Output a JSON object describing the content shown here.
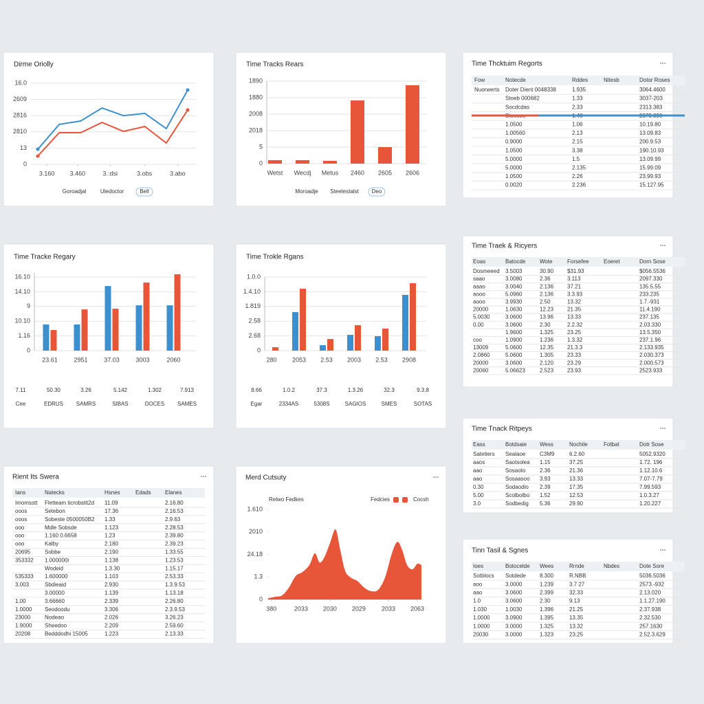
{
  "panels": [
    {
      "type": "line",
      "title": "Dirme Oriolly",
      "x": [
        0,
        1,
        2,
        3,
        4,
        5,
        6,
        7
      ],
      "xlim": [
        0,
        7
      ],
      "xticks": [
        {
          "value": 0.42,
          "label": "3.160"
        },
        {
          "value": 1.86,
          "label": "3.460"
        },
        {
          "value": 3.38,
          "label": "3.:dsi"
        },
        {
          "value": 4.98,
          "label": "3.obs"
        },
        {
          "value": 6.53,
          "label": "3.abo"
        }
      ],
      "ylim": [
        0,
        5
      ],
      "yticks": [
        0,
        {
          "value": 1,
          "label": "13"
        },
        {
          "value": 2,
          "label": "2810"
        },
        {
          "value": 3,
          "label": "2816"
        },
        {
          "value": 4,
          "label": "2609"
        },
        {
          "value": 5,
          "label": "16.0"
        }
      ],
      "grid": true,
      "series": [
        {
          "color": "#3d8fce",
          "values": [
            0.93,
            2.46,
            2.67,
            3.47,
            3.0,
            3.14,
            2.2,
            4.58
          ]
        },
        {
          "color": "#e8563a",
          "values": [
            0.51,
            1.95,
            1.95,
            2.58,
            2.03,
            2.33,
            1.31,
            3.35
          ]
        }
      ],
      "footer": [
        "Goroadjal",
        "Uledoctor",
        "Bell"
      ]
    },
    {
      "type": "bar",
      "title": "Time Tracks Rears",
      "categories": [
        "Wetst",
        "Wecdj",
        "Metus",
        "2460",
        "2605",
        "2606"
      ],
      "values": [
        0.21,
        0.21,
        0.17,
        3.83,
        1.0,
        4.75
      ],
      "color": "#e8563a",
      "ylim": [
        0,
        5
      ],
      "yticks": [
        0,
        {
          "value": 1,
          "label": "5"
        },
        {
          "value": 2,
          "label": "2018"
        },
        {
          "value": 3,
          "label": "2008"
        },
        {
          "value": 4,
          "label": "1880"
        },
        {
          "value": 5,
          "label": "1890"
        }
      ],
      "grid": true,
      "footer": [
        "Moroadje",
        "Steetestalst",
        "Deo"
      ]
    },
    {
      "type": "table",
      "title": "Time Thcktuim Regorts",
      "columns": [
        {
          "key": "a",
          "title": "Fow"
        },
        {
          "key": "b",
          "title": "Notecde"
        },
        {
          "key": "c",
          "title": "Rddes"
        },
        {
          "key": "d",
          "title": "Nitesb"
        },
        {
          "key": "e",
          "title": "Dotor Roses"
        }
      ],
      "highlight_color": "#e8563a",
      "rows": [
        {
          "a": "Nuorwerts",
          "b": "Doter Dient 0048338",
          "c": "1.935",
          "e": "3064.4600",
          "red": [
            "e"
          ]
        },
        {
          "b": "Stoeb 000682",
          "c": "1.33",
          "e": "3037-203"
        },
        {
          "b": "Socdcdas",
          "c": "2.33",
          "e": "2313.383"
        },
        {
          "b": "Stoocoo",
          "c": "1.48",
          "e": "2073.390"
        },
        {
          "b": "1.0500",
          "c": "1.06",
          "e": "10.19.80"
        },
        {
          "b": "1.00560",
          "c": "2.13",
          "e": "13.09.83"
        },
        {
          "b": "0.9000",
          "c": "2.15",
          "e": "200.9.53"
        },
        {
          "b": "1.0500",
          "c": "3.38",
          "e": "190.10.93"
        },
        {
          "b": "5.0000",
          "c": "1.5",
          "e": "13.09.99"
        },
        {
          "b": "5.0000",
          "c": "2.135",
          "e": "15.99.09"
        },
        {
          "b": "1.0500",
          "c": "2.26",
          "e": "23.99.93"
        },
        {
          "b": "0.0020",
          "c": "2.236",
          "e": "15.127.95"
        }
      ]
    },
    {
      "type": "grouped",
      "title": "Time Tracke Regary",
      "categories": [
        "23.61",
        "2951",
        "37.03",
        "3003",
        "2060"
      ],
      "ylim": [
        0,
        5.3
      ],
      "yticks": [
        0,
        {
          "value": 1,
          "label": "1.16"
        },
        {
          "value": 2,
          "label": "10.10"
        },
        {
          "value": 3,
          "label": "9"
        },
        {
          "value": 4,
          "label": "14.10"
        },
        {
          "value": 5,
          "label": "16.10"
        }
      ],
      "grid": true,
      "series": [
        {
          "color": "#3d8fce",
          "values": [
            1.78,
            1.78,
            4.39,
            3.08,
            3.08
          ]
        },
        {
          "color": "#e8563a",
          "values": [
            1.4,
            2.8,
            2.85,
            4.63,
            5.19
          ]
        }
      ],
      "stats": [
        {
          "value": "7.11",
          "label": "Cee",
          "color": "#e8563a"
        },
        {
          "value": "50.30",
          "label": "EDRUS",
          "color": "#e8563a"
        },
        {
          "value": "3.26",
          "label": "SAMRS",
          "color": "#e8563a"
        },
        {
          "value": "5.142",
          "label": "SIBAS",
          "color": "#e8563a"
        },
        {
          "value": "1.302",
          "label": "DOCES",
          "color": "#3d8fce"
        },
        {
          "value": "7.913",
          "label": "SAMES",
          "color": "#3d8fce"
        }
      ]
    },
    {
      "type": "grouped",
      "title": "Time Trokle Rgans",
      "categories": [
        "280",
        "2053",
        "2.53",
        "2003",
        "2.53",
        "2908"
      ],
      "ylim": [
        0,
        5
      ],
      "yticks": [
        0,
        {
          "value": 1,
          "label": "2.68"
        },
        {
          "value": 2,
          "label": "2.58"
        },
        {
          "value": 3,
          "label": "1.819"
        },
        {
          "value": 4,
          "label": "1.4.10"
        },
        {
          "value": 5,
          "label": "1.0.0"
        }
      ],
      "grid": true,
      "series": [
        {
          "color": "#3d8fce",
          "values": [
            null,
            2.62,
            0.37,
            1.07,
            0.98,
            3.79
          ]
        },
        {
          "color": "#e8563a",
          "values": [
            0.23,
            4.21,
            0.79,
            1.73,
            1.5,
            4.58
          ]
        }
      ],
      "stats": [
        {
          "value": "8.66",
          "label": "Egar",
          "color": "#e8563a"
        },
        {
          "value": "1.0.2",
          "label": "2334AS",
          "color": "#e8563a"
        },
        {
          "value": "37.3",
          "label": "5308S",
          "color": "#3d8fce"
        },
        {
          "value": "1.3.26",
          "label": "SAGIOS",
          "color": "#3d8fce"
        },
        {
          "value": "32.3",
          "label": "SMES",
          "color": "#3d8fce"
        },
        {
          "value": "9.3.8",
          "label": "SOTAS",
          "color": "#3d8fce"
        }
      ]
    },
    {
      "type": "table",
      "title": "Time Traek & Ricyers",
      "columns": [
        {
          "key": "a",
          "title": "Eoas"
        },
        {
          "key": "b",
          "title": "Batocde"
        },
        {
          "key": "c",
          "title": "Wote"
        },
        {
          "key": "d",
          "title": "Forsefee"
        },
        {
          "key": "e",
          "title": "Eoeret"
        },
        {
          "key": "f",
          "title": "Dorn Sose"
        }
      ],
      "highlight_color": "#e8563a",
      "rows": [
        {
          "a": "Dosmeeed",
          "b": "3.5003",
          "c": "30.90",
          "d": "$31.93",
          "f": "$056.5536",
          "red": [
            "d",
            "f"
          ]
        },
        {
          "a": "saao",
          "b": "3.0080",
          "c": "2.36",
          "d": "3.113",
          "f": "2097.330"
        },
        {
          "a": "aaao",
          "b": "3.0040",
          "c": "2.136",
          "d": "37.21",
          "f": "135.5.55",
          "red": [
            "d"
          ]
        },
        {
          "a": "aooo",
          "b": "5.0960",
          "c": "2.136",
          "d": "3.3.93",
          "f": "233.235"
        },
        {
          "a": "aooo",
          "b": "3.9930",
          "c": "2.50",
          "d": "13.32",
          "f": "1.7.-931"
        },
        {
          "a": "20000",
          "b": "1.0630",
          "c": "12.23",
          "d": "21.35",
          "f": "11.4.190"
        },
        {
          "a": "5.0030",
          "b": "3.0600",
          "c": "13.96",
          "d": "13.33",
          "f": "237.135"
        },
        {
          "a": "0.00",
          "b": "3.0600",
          "c": "2.30",
          "d": "2.2.32",
          "f": "2.03.330"
        },
        {
          "b": "1.9600",
          "c": "1.325",
          "d": "23.25",
          "f": "13.5.350"
        },
        {
          "a": "coo",
          "b": "1.0900",
          "c": "1.236",
          "d": "1.3.32",
          "f": "237.1.96"
        },
        {
          "a": "13009",
          "b": "5.0600",
          "c": "12.35",
          "d": "21.3.3",
          "f": "2.133.935"
        },
        {
          "a": "2.0860",
          "b": "5.0600",
          "c": "1.305",
          "d": "23.33",
          "f": "2.030.373",
          "red": [
            "d"
          ]
        },
        {
          "a": "20000",
          "b": "3.0600",
          "c": "2.120",
          "d": "23.29",
          "f": "2.000.573",
          "red": [
            "d"
          ]
        },
        {
          "a": "20060",
          "b": "5.06623",
          "c": "2.523",
          "d": "23.93",
          "f": "2523.933",
          "red": [
            "d"
          ]
        }
      ]
    },
    {
      "type": "table",
      "title": "Rient Its Swera",
      "columns": [
        {
          "key": "a",
          "title": "Ians"
        },
        {
          "key": "b",
          "title": "Natecks"
        },
        {
          "key": "c",
          "title": "Hsnes"
        },
        {
          "key": "d",
          "title": "Edads"
        },
        {
          "key": "e",
          "title": "Elanes"
        }
      ],
      "highlight_color": "#e8563a",
      "rows": [
        {
          "a": "Imomsstt",
          "b": "Fletteam ticrobstit2d",
          "c": "11.09",
          "e": "2.16.80"
        },
        {
          "a": "ooos",
          "b": "Setebon",
          "c": "17.36",
          "e": "2.16.53"
        },
        {
          "a": "ooos",
          "b": "Sobeste 0500050B2",
          "c": "1.33",
          "e": "2.9.63"
        },
        {
          "a": "ooo",
          "b": "Mdle Sobsde",
          "c": "1.123",
          "e": "2.28.53"
        },
        {
          "a": "ooo",
          "b": "1.160 0.6658",
          "c": "1.23",
          "e": "2.39.80"
        },
        {
          "a": "ooo",
          "b": "Kalby",
          "c": "2.180",
          "e": "2.39.23"
        },
        {
          "a": "20695",
          "b": "Sobbe",
          "c": "2.190",
          "e": "1.33.55"
        },
        {
          "a": "353332",
          "b": "1.000000i",
          "c": "1.138",
          "e": "1.23.53"
        },
        {
          "b": "Wodeid",
          "c": "1.3.30",
          "e": "1.15.17"
        },
        {
          "a": "535333",
          "b": "1.600000",
          "c": "1.103",
          "e": "2.53.33"
        },
        {
          "a": "3.003",
          "b": "Sbdieaid",
          "c": "2.930",
          "e": "1.3.9.53"
        },
        {
          "b": "3.00000",
          "c": "1.139",
          "e": "1.13.18"
        },
        {
          "a": "1.00",
          "b": "3.66660",
          "c": "2.339",
          "e": "2.26.80"
        },
        {
          "a": "1.0000",
          "b": "Seodoodu",
          "c": "3.306",
          "e": "2.3.9.53"
        },
        {
          "a": "23000",
          "b": "Nodeao",
          "c": "2.026",
          "e": "3.26.23"
        },
        {
          "a": "1.9000",
          "b": "Sheedoo",
          "c": "2.209",
          "e": "2.59.60"
        },
        {
          "a": "20208",
          "b": "Bedddodhi 15005",
          "c": "1.223",
          "e": "2.13.33"
        }
      ]
    },
    {
      "type": "area",
      "title": "Merd Cutsuty",
      "subtitle": "Relwo Fedkes",
      "legend": [
        {
          "name": "Fedcies",
          "color": "#e8563a"
        },
        {
          "name": "Cocsh",
          "color": "#e8563a"
        }
      ],
      "color": "#e8563a",
      "x": [
        0.9,
        5.3,
        9.7,
        14.1,
        18.5,
        22.9,
        27.3,
        30.8,
        33.9,
        37.0,
        40.5,
        44.1,
        47.1,
        50.2,
        53.7,
        58.1,
        62.6,
        67.0,
        71.4,
        75.8,
        80.2,
        83.7,
        86.8,
        89.9,
        93.4,
        96.5,
        99.1
      ],
      "values": [
        0.06,
        0.12,
        0.18,
        0.52,
        1.04,
        1.22,
        1.53,
        2.05,
        1.65,
        1.89,
        2.5,
        3.11,
        2.2,
        1.28,
        0.98,
        0.82,
        0.52,
        0.37,
        0.43,
        0.98,
        2.05,
        2.56,
        2.2,
        1.53,
        1.34,
        1.59,
        1.53
      ],
      "xlim": [
        0,
        100
      ],
      "xticks": [
        {
          "value": 3,
          "label": "380"
        },
        {
          "value": 22,
          "label": "2033"
        },
        {
          "value": 40.5,
          "label": "2030"
        },
        {
          "value": 59,
          "label": "2029"
        },
        {
          "value": 78,
          "label": "2033"
        },
        {
          "value": 96.5,
          "label": "2063"
        }
      ],
      "ylim": [
        0,
        4
      ],
      "yticks": [
        0,
        {
          "value": 1,
          "label": "1.3"
        },
        {
          "value": 2,
          "label": "24.18"
        },
        {
          "value": 3,
          "label": "2010"
        },
        {
          "value": 4,
          "label": "1.610"
        }
      ],
      "grid": false
    },
    {
      "type": "table",
      "title": "Time Tnack Ritpeys",
      "columns": [
        {
          "key": "a",
          "title": "Eass"
        },
        {
          "key": "b",
          "title": "Botdsaie"
        },
        {
          "key": "c",
          "title": "Wess"
        },
        {
          "key": "d",
          "title": "Nochile"
        },
        {
          "key": "e",
          "title": "Fotbat"
        },
        {
          "key": "f",
          "title": "Dotr Sose"
        }
      ],
      "highlight_color": "#e8563a",
      "rows": [
        {
          "a": "Satetiers",
          "b": "Sealaoe",
          "c": "C3M9",
          "d": "6.2.60",
          "f": "5052.9320",
          "red": [
            "d",
            "f"
          ]
        },
        {
          "a": "aaos",
          "b": "Saotsolea",
          "c": "1.15",
          "d": "37.25",
          "f": "1.72. 196"
        },
        {
          "a": "aao",
          "b": "Sosaoto",
          "c": "2.36",
          "d": "21.36",
          "f": "1.12.10.6"
        },
        {
          "a": "aao",
          "b": "Sosaasoo",
          "c": "3.93",
          "d": "13.33",
          "f": "7.07-7.79"
        },
        {
          "a": "0.30",
          "b": "Sodaodio",
          "c": "2.39",
          "d": "17.35",
          "f": "7.99.593"
        },
        {
          "a": "5.00",
          "b": "Scolbolbo",
          "c": "1.52",
          "d": "12.53",
          "f": "1.0.3.27"
        },
        {
          "a": "3.0",
          "b": "Sodbedig",
          "c": "5.36",
          "d": "29.90",
          "f": "1.20.227"
        }
      ]
    },
    {
      "type": "table",
      "title": "Tinn Tasil & Sgnes",
      "columns": [
        {
          "key": "a",
          "title": "Ioes"
        },
        {
          "key": "b",
          "title": "Botocelde"
        },
        {
          "key": "c",
          "title": "Wees"
        },
        {
          "key": "d",
          "title": "Rrnde"
        },
        {
          "key": "e",
          "title": "Nbdes"
        },
        {
          "key": "f",
          "title": "Dote Sore"
        }
      ],
      "highlight_color": "#e8563a",
      "rows": [
        {
          "a": "Sotblocs",
          "b": "Sotdede",
          "c": "8.300",
          "d": "R.NBB",
          "f": "5036.5036",
          "red": [
            "d",
            "f"
          ]
        },
        {
          "a": "aoo",
          "b": "3.0000",
          "c": "1.239",
          "d": "3.7 27",
          "f": "2573.-932"
        },
        {
          "a": "aao",
          "b": "3.0600",
          "c": "2.399",
          "d": "32.33",
          "f": "2.13.020"
        },
        {
          "a": "1.0",
          "b": "3.0600",
          "c": "2.30",
          "d": "9.13",
          "f": "1.1.27.190"
        },
        {
          "a": "1.030",
          "b": "1.0030",
          "c": "1.396",
          "d": "21.25",
          "f": "2.37.938"
        },
        {
          "a": "1.0000",
          "b": "3.0900",
          "c": "1.395",
          "d": "13.35",
          "f": "2.32.530"
        },
        {
          "a": "1.0000",
          "b": "3.0000",
          "c": "1.325",
          "d": "13.32",
          "f": "257.1630"
        },
        {
          "a": "20030",
          "b": "3.0000",
          "c": "1.323",
          "d": "23.25",
          "f": "2.52.3.629"
        }
      ]
    }
  ]
}
